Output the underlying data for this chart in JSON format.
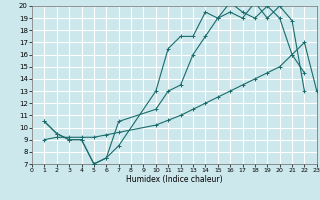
{
  "xlabel": "Humidex (Indice chaleur)",
  "bg_color": "#cce8ed",
  "grid_color": "#ffffff",
  "line_color": "#1a6b6b",
  "ylim": [
    7,
    20
  ],
  "xlim": [
    0,
    23
  ],
  "yticks": [
    7,
    8,
    9,
    10,
    11,
    12,
    13,
    14,
    15,
    16,
    17,
    18,
    19,
    20
  ],
  "xticks": [
    0,
    1,
    2,
    3,
    4,
    5,
    6,
    7,
    8,
    9,
    10,
    11,
    12,
    13,
    14,
    15,
    16,
    17,
    18,
    19,
    20,
    21,
    22,
    23
  ],
  "line1_x": [
    1,
    2,
    3,
    4,
    5,
    6,
    7,
    10,
    11,
    12,
    13,
    14,
    15,
    16,
    17,
    18,
    19,
    20,
    21,
    22
  ],
  "line1_y": [
    10.5,
    9.5,
    9.0,
    9.0,
    7.0,
    7.5,
    8.5,
    13.0,
    16.5,
    17.5,
    17.5,
    19.5,
    19.0,
    20.3,
    19.5,
    19.0,
    20.0,
    19.0,
    16.0,
    14.5
  ],
  "line2_x": [
    1,
    2,
    3,
    4,
    5,
    6,
    7,
    10,
    11,
    12,
    13,
    14,
    15,
    16,
    17,
    18,
    19,
    20,
    21,
    22
  ],
  "line2_y": [
    10.5,
    9.5,
    9.0,
    9.0,
    7.0,
    7.5,
    10.5,
    11.5,
    13.0,
    13.5,
    16.0,
    17.5,
    19.0,
    19.5,
    19.0,
    20.3,
    19.0,
    20.0,
    18.8,
    13.0
  ],
  "line3_x": [
    1,
    2,
    3,
    4,
    5,
    6,
    7,
    10,
    11,
    12,
    13,
    14,
    15,
    16,
    17,
    18,
    19,
    20,
    21,
    22,
    23
  ],
  "line3_y": [
    9.0,
    9.2,
    9.2,
    9.2,
    9.2,
    9.4,
    9.6,
    10.2,
    10.6,
    11.0,
    11.5,
    12.0,
    12.5,
    13.0,
    13.5,
    14.0,
    14.5,
    15.0,
    16.0,
    17.0,
    13.0
  ]
}
